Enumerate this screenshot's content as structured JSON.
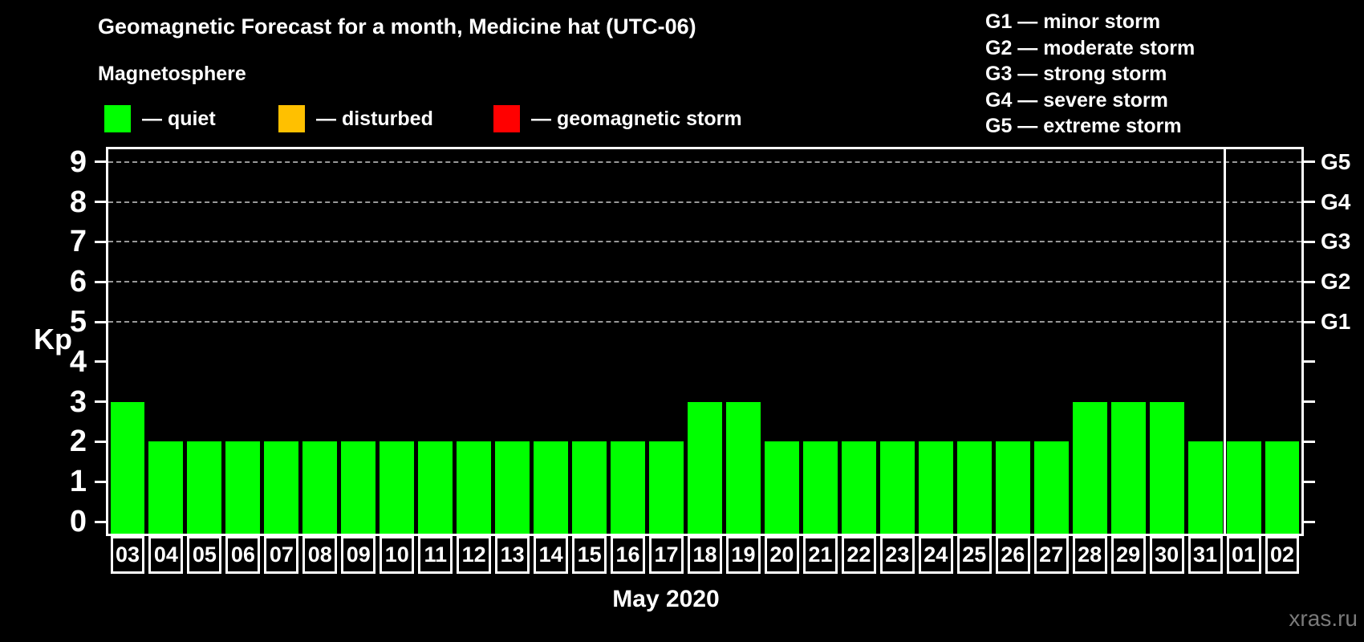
{
  "header": {
    "title": "Geomagnetic Forecast for a month, Medicine hat (UTC-06)",
    "subtitle": "Magnetosphere",
    "legend": [
      {
        "name": "quiet",
        "label": "— quiet",
        "color": "#00ff00"
      },
      {
        "name": "disturbed",
        "label": "— disturbed",
        "color": "#ffc000"
      },
      {
        "name": "geomagnetic-storm",
        "label": "— geomagnetic storm",
        "color": "#ff0000"
      }
    ]
  },
  "g_scale_legend": {
    "items": [
      "G1 — minor storm",
      "G2 — moderate storm",
      "G3 — strong storm",
      "G4 — severe storm",
      "G5 — extreme storm"
    ]
  },
  "chart_data": {
    "type": "bar",
    "title": "Geomagnetic Forecast for a month, Medicine hat (UTC-06)",
    "ylabel": "Kp",
    "xlabel": "May 2020",
    "ylim": [
      0,
      9
    ],
    "yticks": [
      0,
      1,
      2,
      3,
      4,
      5,
      6,
      7,
      8,
      9
    ],
    "grid": "horizontal dashed lines at Kp 5-9 only",
    "grid_levels_kp": [
      5,
      6,
      7,
      8,
      9
    ],
    "right_axis": {
      "labels": [
        "G1",
        "G2",
        "G3",
        "G4",
        "G5"
      ],
      "at_kp": [
        5,
        6,
        7,
        8,
        9
      ]
    },
    "categories": [
      "03",
      "04",
      "05",
      "06",
      "07",
      "08",
      "09",
      "10",
      "11",
      "12",
      "13",
      "14",
      "15",
      "16",
      "17",
      "18",
      "19",
      "20",
      "21",
      "22",
      "23",
      "24",
      "25",
      "26",
      "27",
      "28",
      "29",
      "30",
      "31",
      "01",
      "02"
    ],
    "values": [
      3,
      2,
      2,
      2,
      2,
      2,
      2,
      2,
      2,
      2,
      2,
      2,
      2,
      2,
      2,
      3,
      3,
      2,
      2,
      2,
      2,
      2,
      2,
      2,
      2,
      3,
      3,
      3,
      2,
      2,
      2
    ],
    "bar_color": "#00ff00",
    "month_separator_between": [
      "31",
      "01"
    ],
    "legend_position": "top-left"
  },
  "footer": {
    "watermark": "xras.ru"
  },
  "colors": {
    "background": "#000000",
    "text": "#ffffff",
    "axis": "#ffffff",
    "grid": "#999999",
    "watermark": "#7a7a7a"
  }
}
